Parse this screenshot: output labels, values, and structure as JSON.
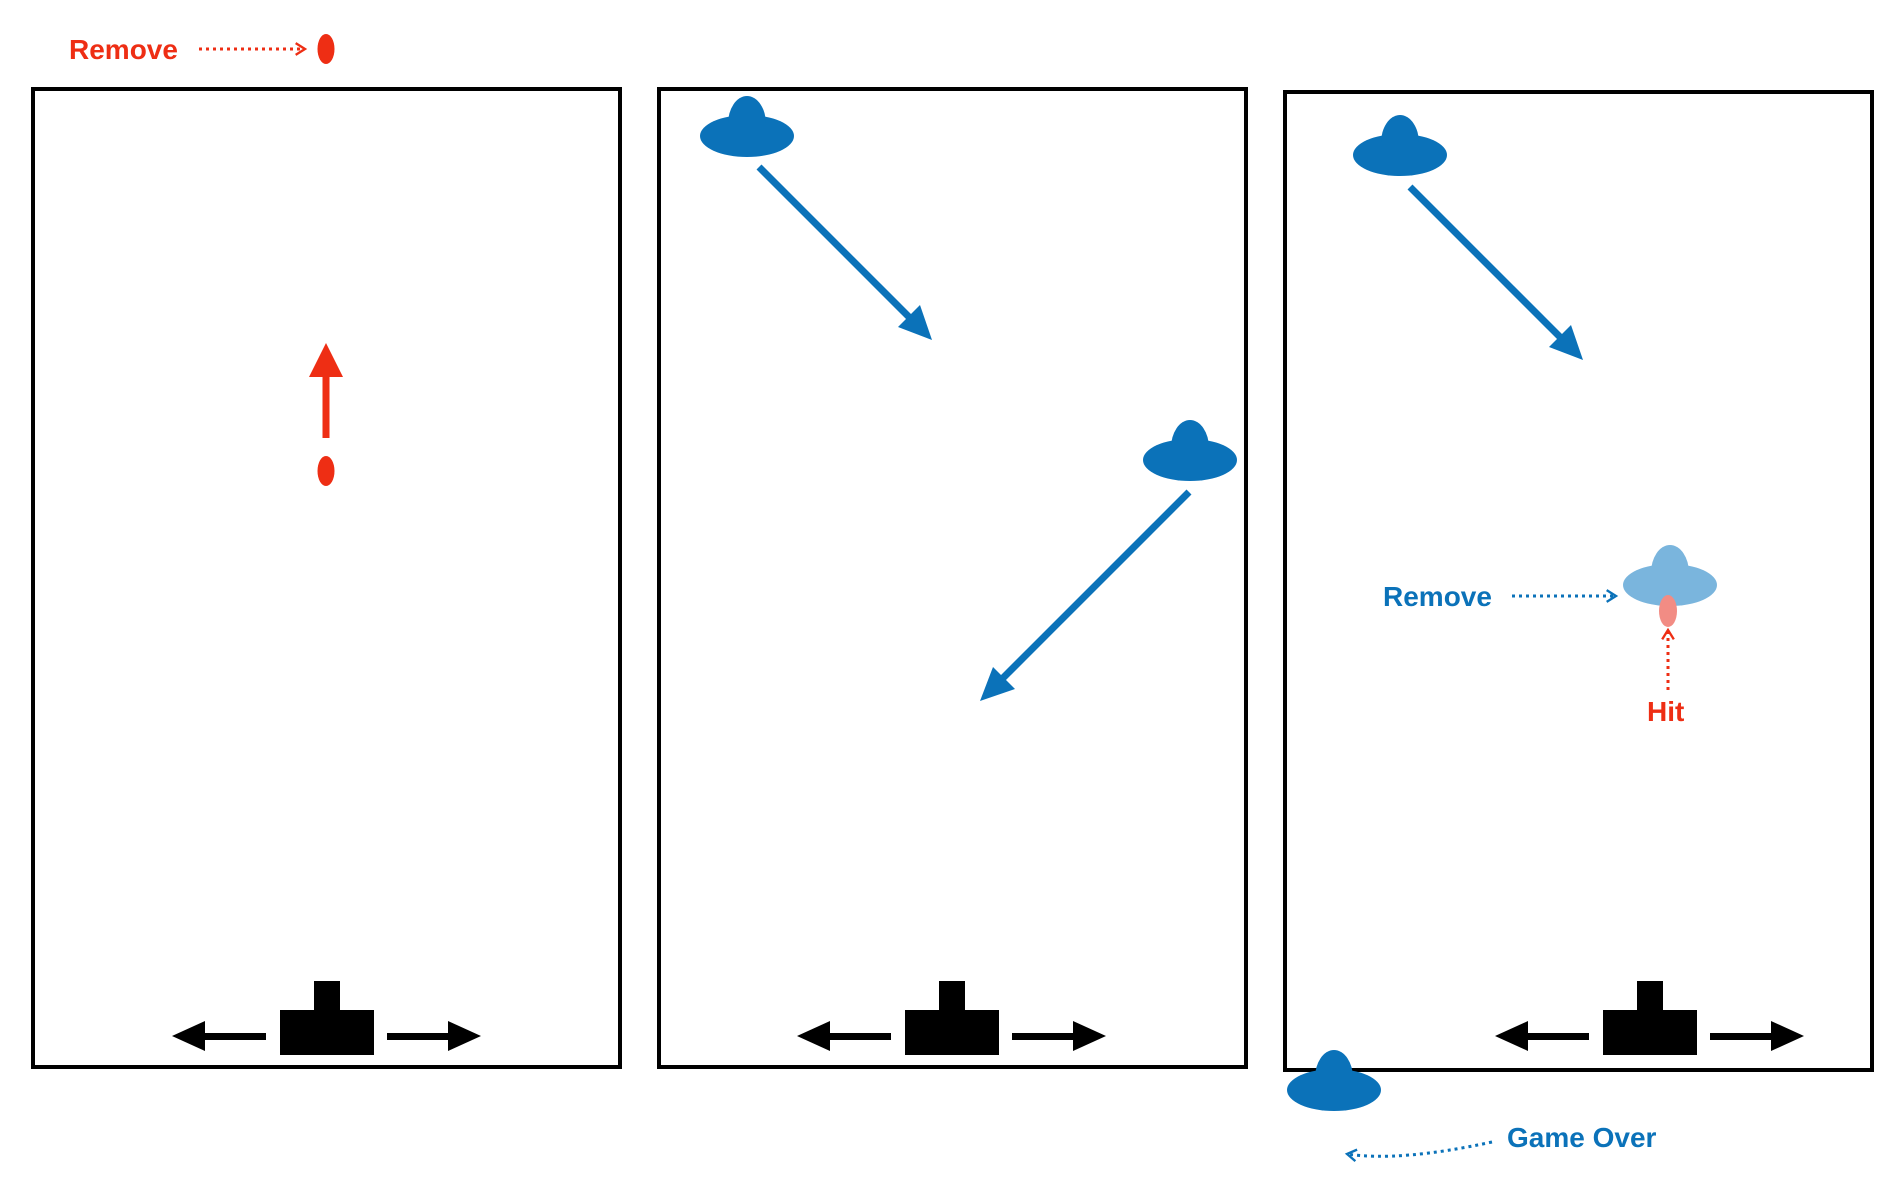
{
  "colors": {
    "missile": "#ee2e14",
    "ufo": "#0b72b9",
    "ufo_faded": "#7ab5dd",
    "missile_faded": "#f28c84",
    "ship": "#000000",
    "frame": "#000000"
  },
  "labels": {
    "remove_missile": "Remove",
    "remove_ufo": "Remove",
    "hit": "Hit",
    "game_over": "Game Over"
  },
  "icons": {
    "missile": "missile-icon",
    "ufo": "ufo-icon",
    "ship": "ship-icon"
  }
}
